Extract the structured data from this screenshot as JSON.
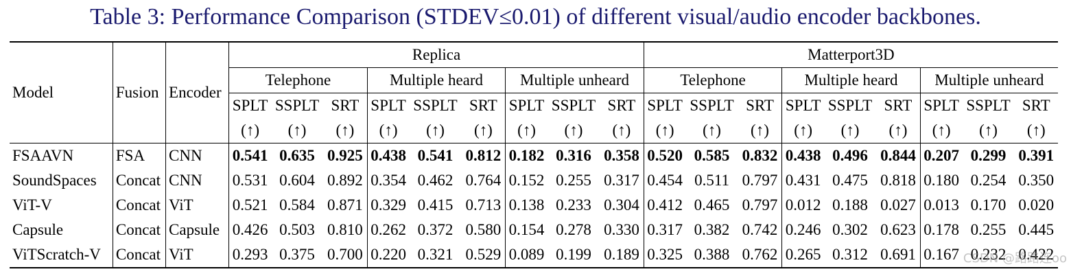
{
  "caption": "Table 3: Performance Comparison (STDEV≤0.01) of different visual/audio encoder backbones.",
  "headers": {
    "model": "Model",
    "fusion": "Fusion",
    "encoder": "Encoder",
    "datasets": [
      "Replica",
      "Matterport3D"
    ],
    "settings": [
      "Telephone",
      "Multiple heard",
      "Multiple unheard",
      "Telephone",
      "Multiple heard",
      "Multiple unheard"
    ],
    "metrics": [
      "SPLT",
      "SSPLT",
      "SRT"
    ],
    "arrow": "(↑)"
  },
  "rows": [
    {
      "model": "FSAAVN",
      "fusion": "FSA",
      "encoder": "CNN",
      "bold": true,
      "values": [
        "0.541",
        "0.635",
        "0.925",
        "0.438",
        "0.541",
        "0.812",
        "0.182",
        "0.316",
        "0.358",
        "0.520",
        "0.585",
        "0.832",
        "0.438",
        "0.496",
        "0.844",
        "0.207",
        "0.299",
        "0.391"
      ]
    },
    {
      "model": "SoundSpaces",
      "fusion": "Concat",
      "encoder": "CNN",
      "bold": false,
      "values": [
        "0.531",
        "0.604",
        "0.892",
        "0.354",
        "0.462",
        "0.764",
        "0.152",
        "0.255",
        "0.317",
        "0.454",
        "0.511",
        "0.797",
        "0.431",
        "0.475",
        "0.818",
        "0.180",
        "0.254",
        "0.350"
      ]
    },
    {
      "model": "ViT-V",
      "fusion": "Concat",
      "encoder": "ViT",
      "bold": false,
      "values": [
        "0.521",
        "0.584",
        "0.871",
        "0.329",
        "0.415",
        "0.713",
        "0.138",
        "0.233",
        "0.304",
        "0.412",
        "0.465",
        "0.797",
        "0.012",
        "0.188",
        "0.027",
        "0.013",
        "0.170",
        "0.020"
      ]
    },
    {
      "model": "Capsule",
      "fusion": "Concat",
      "encoder": "Capsule",
      "bold": false,
      "values": [
        "0.426",
        "0.503",
        "0.810",
        "0.262",
        "0.372",
        "0.580",
        "0.154",
        "0.278",
        "0.330",
        "0.317",
        "0.382",
        "0.742",
        "0.246",
        "0.302",
        "0.623",
        "0.178",
        "0.255",
        "0.445"
      ]
    },
    {
      "model": "ViTScratch-V",
      "fusion": "Concat",
      "encoder": "ViT",
      "bold": false,
      "values": [
        "0.293",
        "0.375",
        "0.700",
        "0.220",
        "0.321",
        "0.529",
        "0.089",
        "0.199",
        "0.189",
        "0.325",
        "0.388",
        "0.762",
        "0.265",
        "0.312",
        "0.691",
        "0.167",
        "0.232",
        "0.422"
      ]
    }
  ],
  "watermark": "CSDN @路路连oo"
}
